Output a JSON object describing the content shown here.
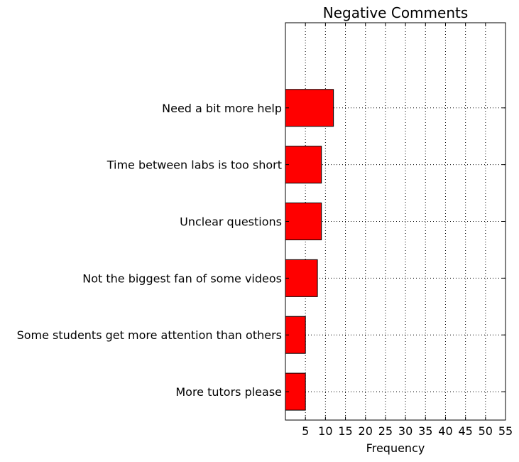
{
  "chart_data": {
    "type": "bar",
    "orientation": "horizontal",
    "title": "Negative Comments",
    "xlabel": "Frequency",
    "ylabel": "",
    "categories": [
      "More tutors please",
      "Some students get more attention than others",
      "Not the biggest fan of some videos",
      "Unclear questions",
      "Time between labs is too short",
      "Need a bit more help"
    ],
    "values": [
      5,
      5,
      8,
      9,
      9,
      12
    ],
    "xlim": [
      0,
      55
    ],
    "xticks": [
      5,
      10,
      15,
      20,
      25,
      30,
      35,
      40,
      45,
      50,
      55
    ],
    "ylim": [
      -0.5,
      6.5
    ],
    "bar_color": "#ff0000",
    "grid": true
  }
}
